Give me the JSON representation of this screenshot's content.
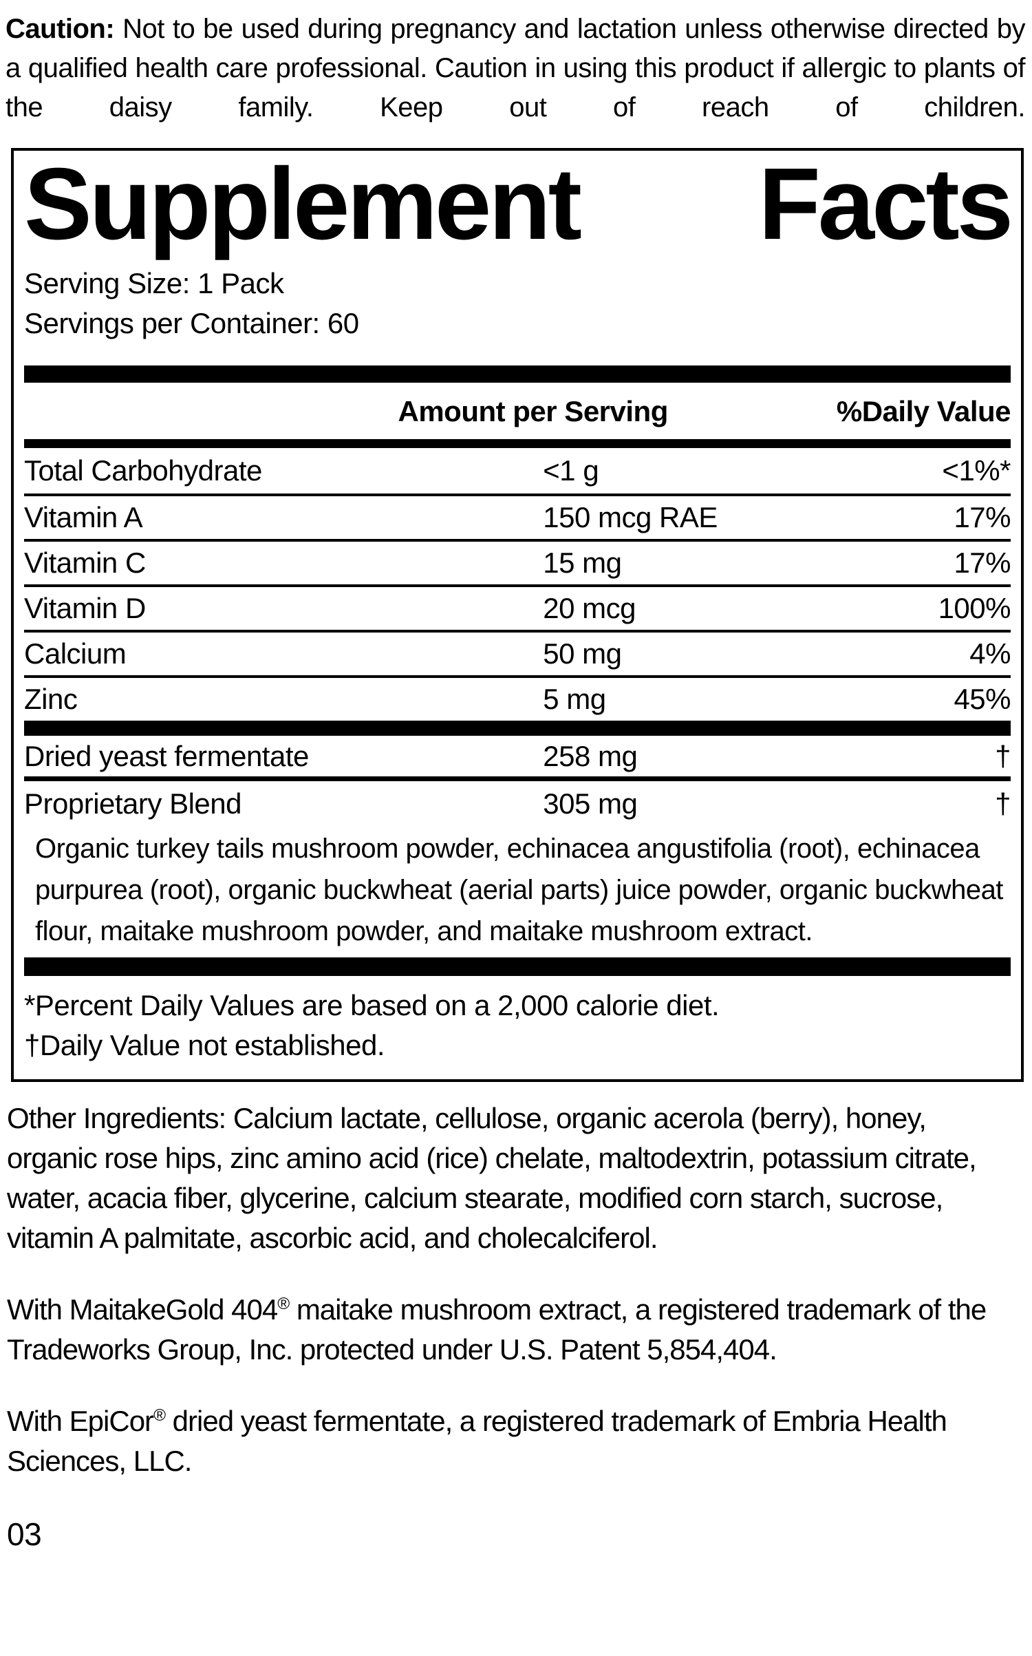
{
  "colors": {
    "ink": "#000000",
    "background": "#ffffff"
  },
  "caution": {
    "lead": "Caution:",
    "text": "Not to be used during pregnancy and lactation unless otherwise directed by a qualified health care professional. Caution in using this product if allergic to plants of the daisy family. Keep out of reach of children."
  },
  "panel": {
    "title_word1": "Supplement",
    "title_word2": "Facts",
    "serving_size": "Serving Size: 1 Pack",
    "servings_per_container": "Servings per Container: 60",
    "header": {
      "amount": "Amount per Serving",
      "daily_value": "%Daily Value"
    },
    "rows": [
      {
        "label": "Total Carbohydrate",
        "amount": "<1 g",
        "dv": "<1%*"
      },
      {
        "label": "Vitamin A",
        "amount": "150 mcg RAE",
        "dv": "17%"
      },
      {
        "label": "Vitamin C",
        "amount": "15 mg",
        "dv": "17%"
      },
      {
        "label": "Vitamin D",
        "amount": "20 mcg",
        "dv": "100%"
      },
      {
        "label": "Calcium",
        "amount": "50 mg",
        "dv": "4%"
      },
      {
        "label": "Zinc",
        "amount": "5 mg",
        "dv": "45%"
      }
    ],
    "rows2": [
      {
        "label": "Dried yeast fermentate",
        "amount": "258 mg",
        "dv": "†"
      },
      {
        "label": "Proprietary Blend",
        "amount": "305 mg",
        "dv": "†"
      }
    ],
    "blend_description": "Organic turkey tails mushroom powder, echinacea angustifolia (root), echinacea purpurea (root), organic buckwheat (aerial parts) juice powder, organic buckwheat flour, maitake mushroom powder, and maitake mushroom extract.",
    "footnote_percent": "*Percent Daily Values are based on a 2,000 calorie diet.",
    "footnote_dagger": "†Daily Value not established."
  },
  "other_ingredients": "Other Ingredients: Calcium lactate, cellulose, organic acerola (berry), honey, organic rose hips, zinc amino acid (rice) chelate, maltodextrin, potassium citrate, water, acacia fiber, glycerine, calcium stearate, modified corn starch, sucrose, vitamin A palmitate, ascorbic acid, and cholecalciferol.",
  "trademark_maitake": {
    "before": "With MaitakeGold 404",
    "reg": "®",
    "after": " maitake mushroom extract, a registered trademark of the Tradeworks Group, Inc. protected under U.S. Patent 5,854,404."
  },
  "trademark_epicor": {
    "before": "With EpiCor",
    "reg": "®",
    "after": " dried yeast fermentate, a registered trademark of Embria Health Sciences, LLC."
  },
  "page_number": "03"
}
